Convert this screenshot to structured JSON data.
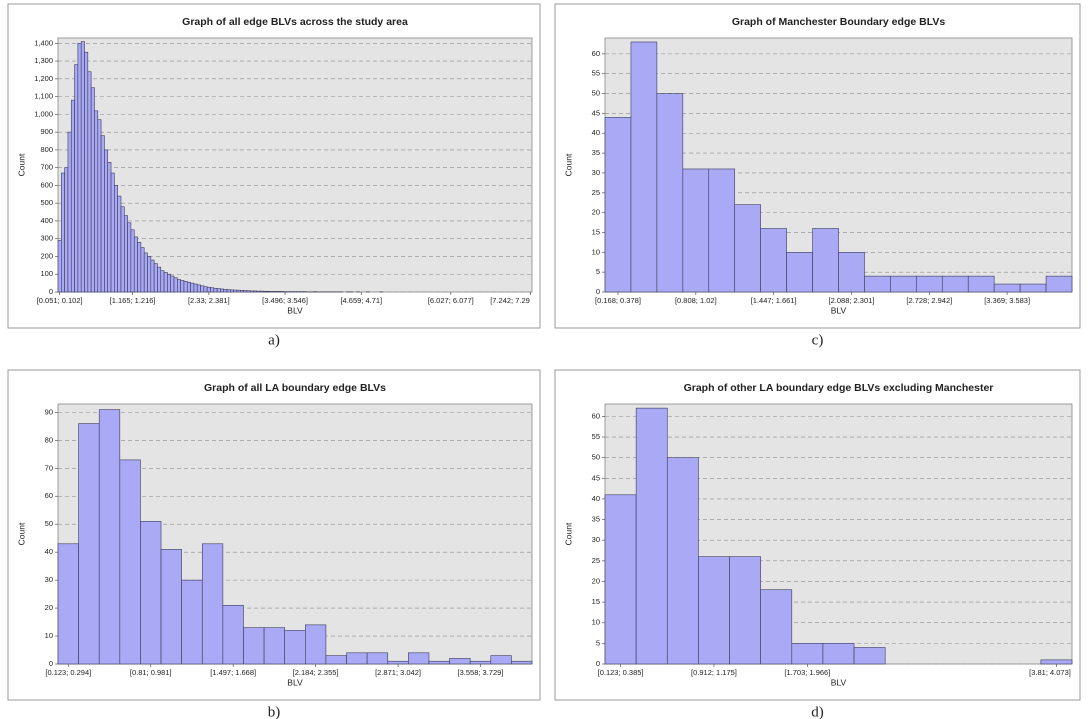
{
  "chart_data": [
    {
      "type": "bar",
      "title": "Graph of all edge BLVs across the study area",
      "xlabel": "BLV",
      "ylabel": "Count",
      "caption": "a)",
      "color": "#a9a9f6",
      "grid": true,
      "categories": [
        "[0.051; 0.102]",
        null,
        null,
        null,
        null,
        null,
        null,
        null,
        null,
        null,
        null,
        null,
        null,
        null,
        null,
        null,
        null,
        null,
        null,
        null,
        null,
        null,
        "[1.165; 1.216]",
        null,
        null,
        null,
        null,
        null,
        null,
        null,
        null,
        null,
        null,
        null,
        null,
        null,
        null,
        null,
        null,
        null,
        null,
        null,
        null,
        null,
        null,
        "[2.33; 2.381]",
        null,
        null,
        null,
        null,
        null,
        null,
        null,
        null,
        null,
        null,
        null,
        null,
        null,
        null,
        null,
        null,
        null,
        null,
        null,
        null,
        null,
        null,
        "[3.496; 3.546]",
        null,
        null,
        null,
        null,
        null,
        null,
        null,
        null,
        null,
        null,
        null,
        null,
        null,
        null,
        null,
        null,
        null,
        null,
        null,
        null,
        null,
        null,
        "[4.659; 4.71]",
        null,
        null,
        null,
        null,
        null,
        null,
        null,
        null,
        null,
        null,
        null,
        null,
        null,
        null,
        null,
        null,
        null,
        null,
        null,
        null,
        null,
        null,
        null,
        null,
        null,
        null,
        "[6.027; 6.077]",
        null,
        null,
        null,
        null,
        null,
        null,
        null,
        null,
        null,
        null,
        null,
        null,
        null,
        null,
        null,
        null,
        null,
        null,
        null,
        null,
        null,
        null,
        null,
        "[7.242; 7.29"
      ],
      "values": [
        290,
        670,
        700,
        900,
        1080,
        1280,
        1400,
        1410,
        1350,
        1240,
        1150,
        1020,
        970,
        880,
        800,
        730,
        670,
        600,
        540,
        480,
        430,
        390,
        350,
        310,
        280,
        250,
        220,
        200,
        180,
        160,
        140,
        120,
        110,
        100,
        90,
        80,
        70,
        65,
        60,
        55,
        50,
        45,
        40,
        35,
        30,
        27,
        24,
        21,
        19,
        17,
        15,
        13,
        12,
        11,
        10,
        9,
        8,
        7,
        6,
        6,
        5,
        5,
        4,
        4,
        3,
        3,
        3,
        3,
        2,
        2,
        2,
        2,
        2,
        2,
        2,
        1,
        1,
        2,
        1,
        1,
        1,
        1,
        1,
        1,
        1,
        1,
        0,
        1,
        1,
        0,
        1,
        0,
        0,
        1,
        0,
        0,
        0,
        1,
        0,
        0,
        0,
        0,
        0,
        0,
        0,
        0,
        0,
        0,
        0,
        0,
        0,
        0,
        0,
        0,
        0,
        0,
        0,
        0,
        0,
        0,
        0,
        0,
        0,
        0,
        0,
        0,
        0,
        0,
        0,
        0,
        0,
        0,
        0,
        0,
        0,
        0,
        0,
        0,
        0,
        0,
        0,
        0,
        0
      ],
      "ylim": [
        0,
        1430
      ],
      "yticks": [
        0,
        100,
        200,
        300,
        400,
        500,
        600,
        700,
        800,
        900,
        {
          "value": 1000,
          "label": "1,000"
        },
        {
          "value": 1100,
          "label": "1,100"
        },
        {
          "value": 1200,
          "label": "1,200"
        },
        {
          "value": 1300,
          "label": "1,300"
        },
        {
          "value": 1400,
          "label": "1,400"
        }
      ]
    },
    {
      "type": "bar",
      "title": "Graph of all LA boundary edge BLVs",
      "xlabel": "BLV",
      "ylabel": "Count",
      "caption": "b)",
      "color": "#a9a9f6",
      "grid": true,
      "categories": [
        "[0.123; 0.294]",
        null,
        null,
        null,
        "[0.81; 0.981]",
        null,
        null,
        null,
        "[1.497; 1.668]",
        null,
        null,
        null,
        "[2.184; 2.355]",
        null,
        null,
        null,
        "[2.871; 3.042]",
        null,
        null,
        null,
        "[3.558; 3.729]",
        null,
        null
      ],
      "values": [
        43,
        86,
        91,
        73,
        51,
        41,
        30,
        43,
        21,
        13,
        13,
        12,
        14,
        3,
        4,
        4,
        1,
        4,
        1,
        2,
        1,
        3,
        1
      ],
      "ylim": [
        0,
        93
      ],
      "yticks": [
        0,
        10,
        20,
        30,
        40,
        50,
        60,
        70,
        80,
        90
      ]
    },
    {
      "type": "bar",
      "title": "Graph of Manchester Boundary edge BLVs",
      "xlabel": "BLV",
      "ylabel": "Count",
      "caption": "c)",
      "color": "#a9a9f6",
      "grid": true,
      "categories": [
        "[0.168; 0.378]",
        null,
        null,
        "[0.808; 1.02]",
        null,
        null,
        "[1.447; 1.661]",
        null,
        null,
        "[2.088; 2.301]",
        null,
        null,
        "[2.728; 2.942]",
        null,
        null,
        "[3.369; 3.583]",
        null,
        null
      ],
      "values": [
        44,
        63,
        50,
        31,
        31,
        22,
        16,
        10,
        16,
        10,
        4,
        4,
        4,
        4,
        4,
        2,
        2,
        4
      ],
      "ylim": [
        0,
        64
      ],
      "yticks": [
        0,
        5,
        10,
        15,
        20,
        25,
        30,
        35,
        40,
        45,
        50,
        55,
        60
      ]
    },
    {
      "type": "bar",
      "title": "Graph of other LA boundary edge BLVs excluding Manchester",
      "xlabel": "BLV",
      "ylabel": "Count",
      "caption": "d)",
      "color": "#a9a9f6",
      "grid": true,
      "categories": [
        "[0.123; 0.385]",
        null,
        null,
        "[0.912; 1.175]",
        null,
        null,
        "[1.703; 1.966]",
        null,
        null,
        null,
        null,
        null,
        null,
        null,
        "[3.81; 4.073]"
      ],
      "values": [
        41,
        62,
        50,
        26,
        26,
        18,
        5,
        5,
        4,
        0,
        0,
        0,
        0,
        0,
        1
      ],
      "ylim": [
        0,
        63
      ],
      "yticks": [
        0,
        5,
        10,
        15,
        20,
        25,
        30,
        35,
        40,
        45,
        50,
        55,
        60
      ]
    }
  ]
}
